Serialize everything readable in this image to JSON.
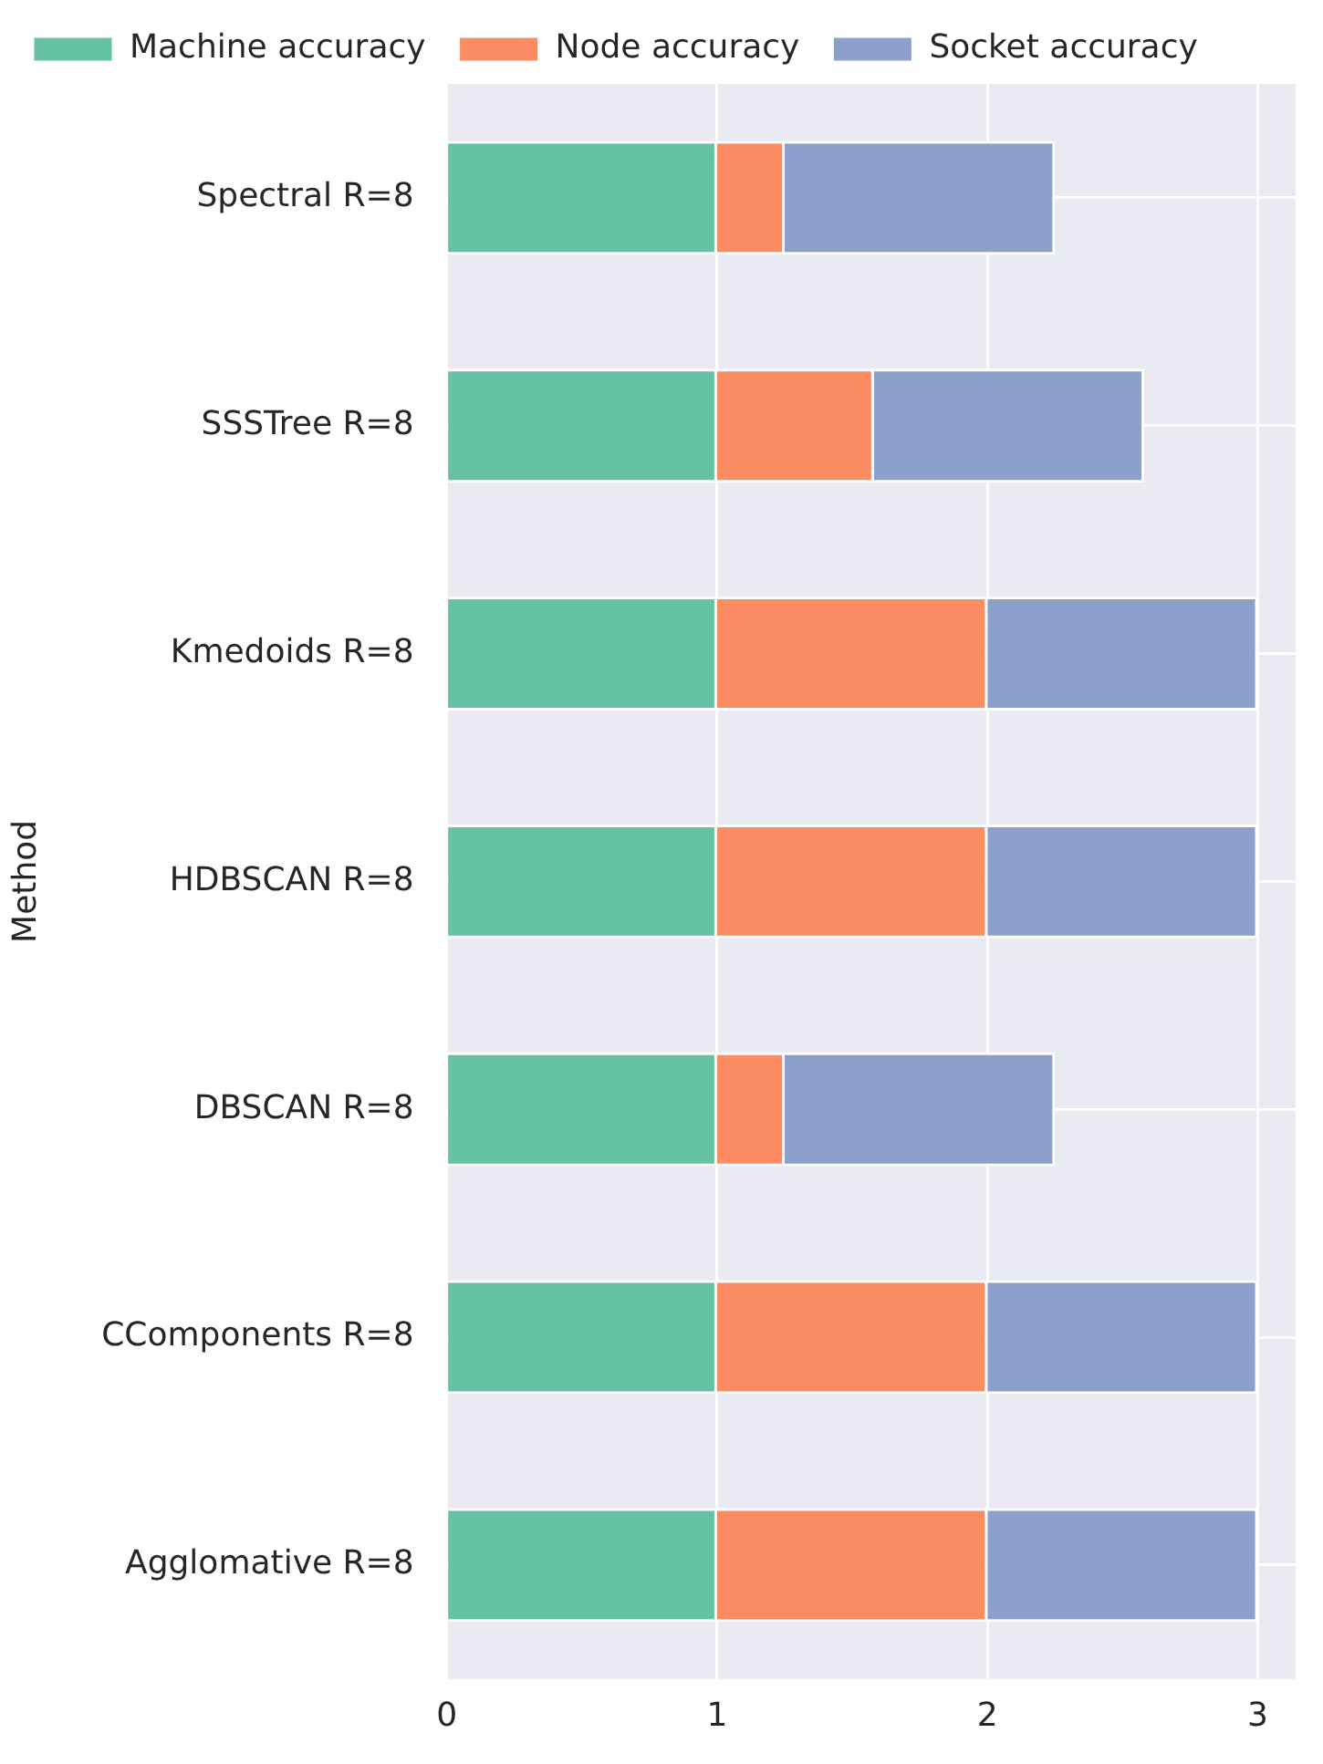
{
  "chart_data": {
    "type": "bar",
    "orientation": "horizontal",
    "stacked": true,
    "ylabel": "Method",
    "categories": [
      "Spectral R=8",
      "SSSTree R=8",
      "Kmedoids R=8",
      "HDBSCAN R=8",
      "DBSCAN R=8",
      "CComponents R=8",
      "Agglomative R=8"
    ],
    "series": [
      {
        "name": "Machine accuracy",
        "color": "#66c2a5",
        "values": [
          1,
          1,
          1,
          1,
          1,
          1,
          1
        ]
      },
      {
        "name": "Node accuracy",
        "color": "#fc8d62",
        "values": [
          0.25,
          0.58,
          1,
          1,
          0.25,
          1,
          1
        ]
      },
      {
        "name": "Socket accuracy",
        "color": "#8da0cb",
        "values": [
          1,
          1,
          1,
          1,
          1,
          1,
          1
        ]
      }
    ],
    "xlim": [
      0,
      3.14
    ],
    "xticks": [
      0,
      1,
      2,
      3
    ],
    "grid": true,
    "legend": "top left"
  }
}
